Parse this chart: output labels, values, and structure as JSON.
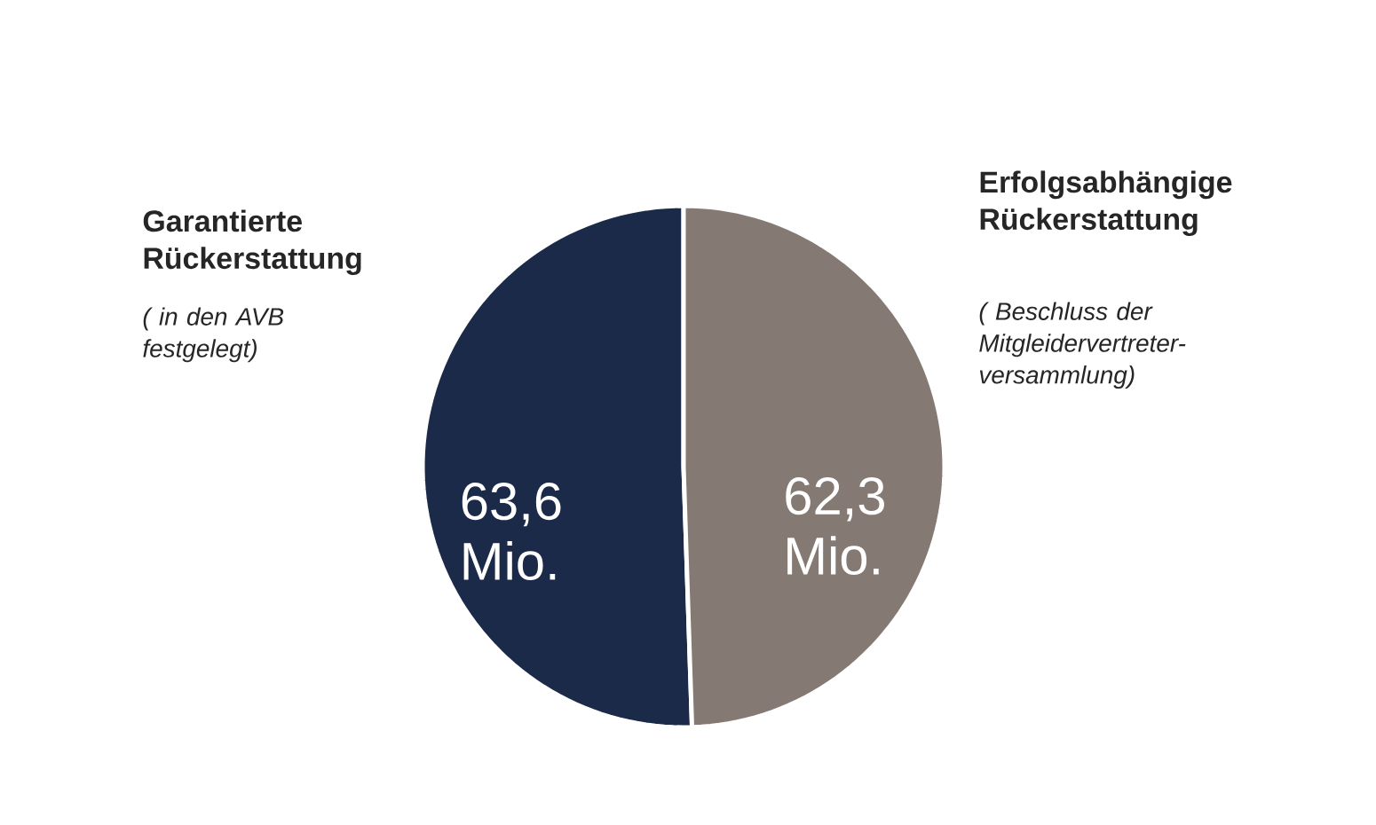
{
  "chart_data": {
    "type": "pie",
    "categories": [
      "Garantierte Rückerstattung",
      "Erfolgsabhängige Rückerstattung"
    ],
    "values": [
      63.6,
      62.3
    ],
    "value_labels": [
      "63,6 Mio.",
      "62,3 Mio."
    ],
    "colors": [
      "#1c2a4a",
      "#857a73"
    ],
    "annotations": [
      "( in den AVB festgelegt)",
      "( Beschluss der Mitgleidervertreter-versammlung)"
    ]
  }
}
